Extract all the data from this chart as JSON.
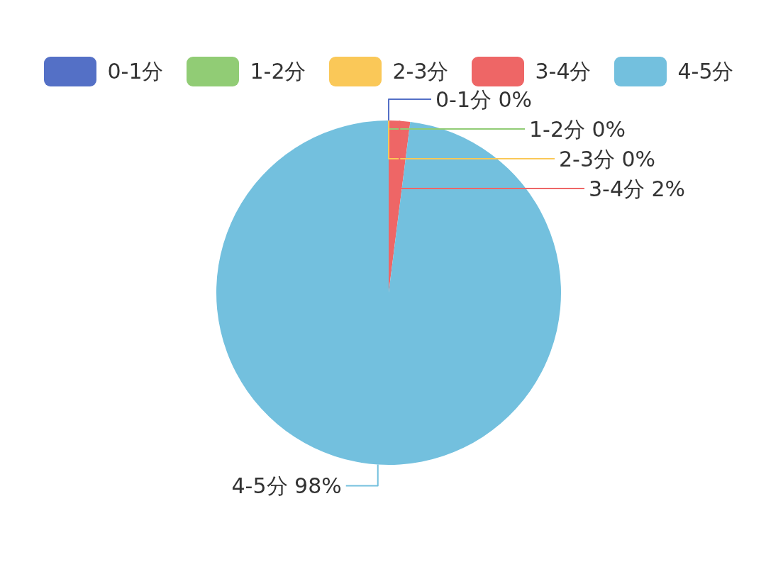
{
  "chart_data": {
    "type": "pie",
    "categories": [
      "0-1分",
      "1-2分",
      "2-3分",
      "3-4分",
      "4-5分"
    ],
    "values": [
      0,
      0,
      0,
      2,
      98
    ],
    "colors": [
      "#5470c6",
      "#91cc75",
      "#fac858",
      "#ee6666",
      "#73c0de"
    ],
    "value_labels": [
      "0%",
      "0%",
      "0%",
      "2%",
      "98%"
    ],
    "legend": "top"
  }
}
